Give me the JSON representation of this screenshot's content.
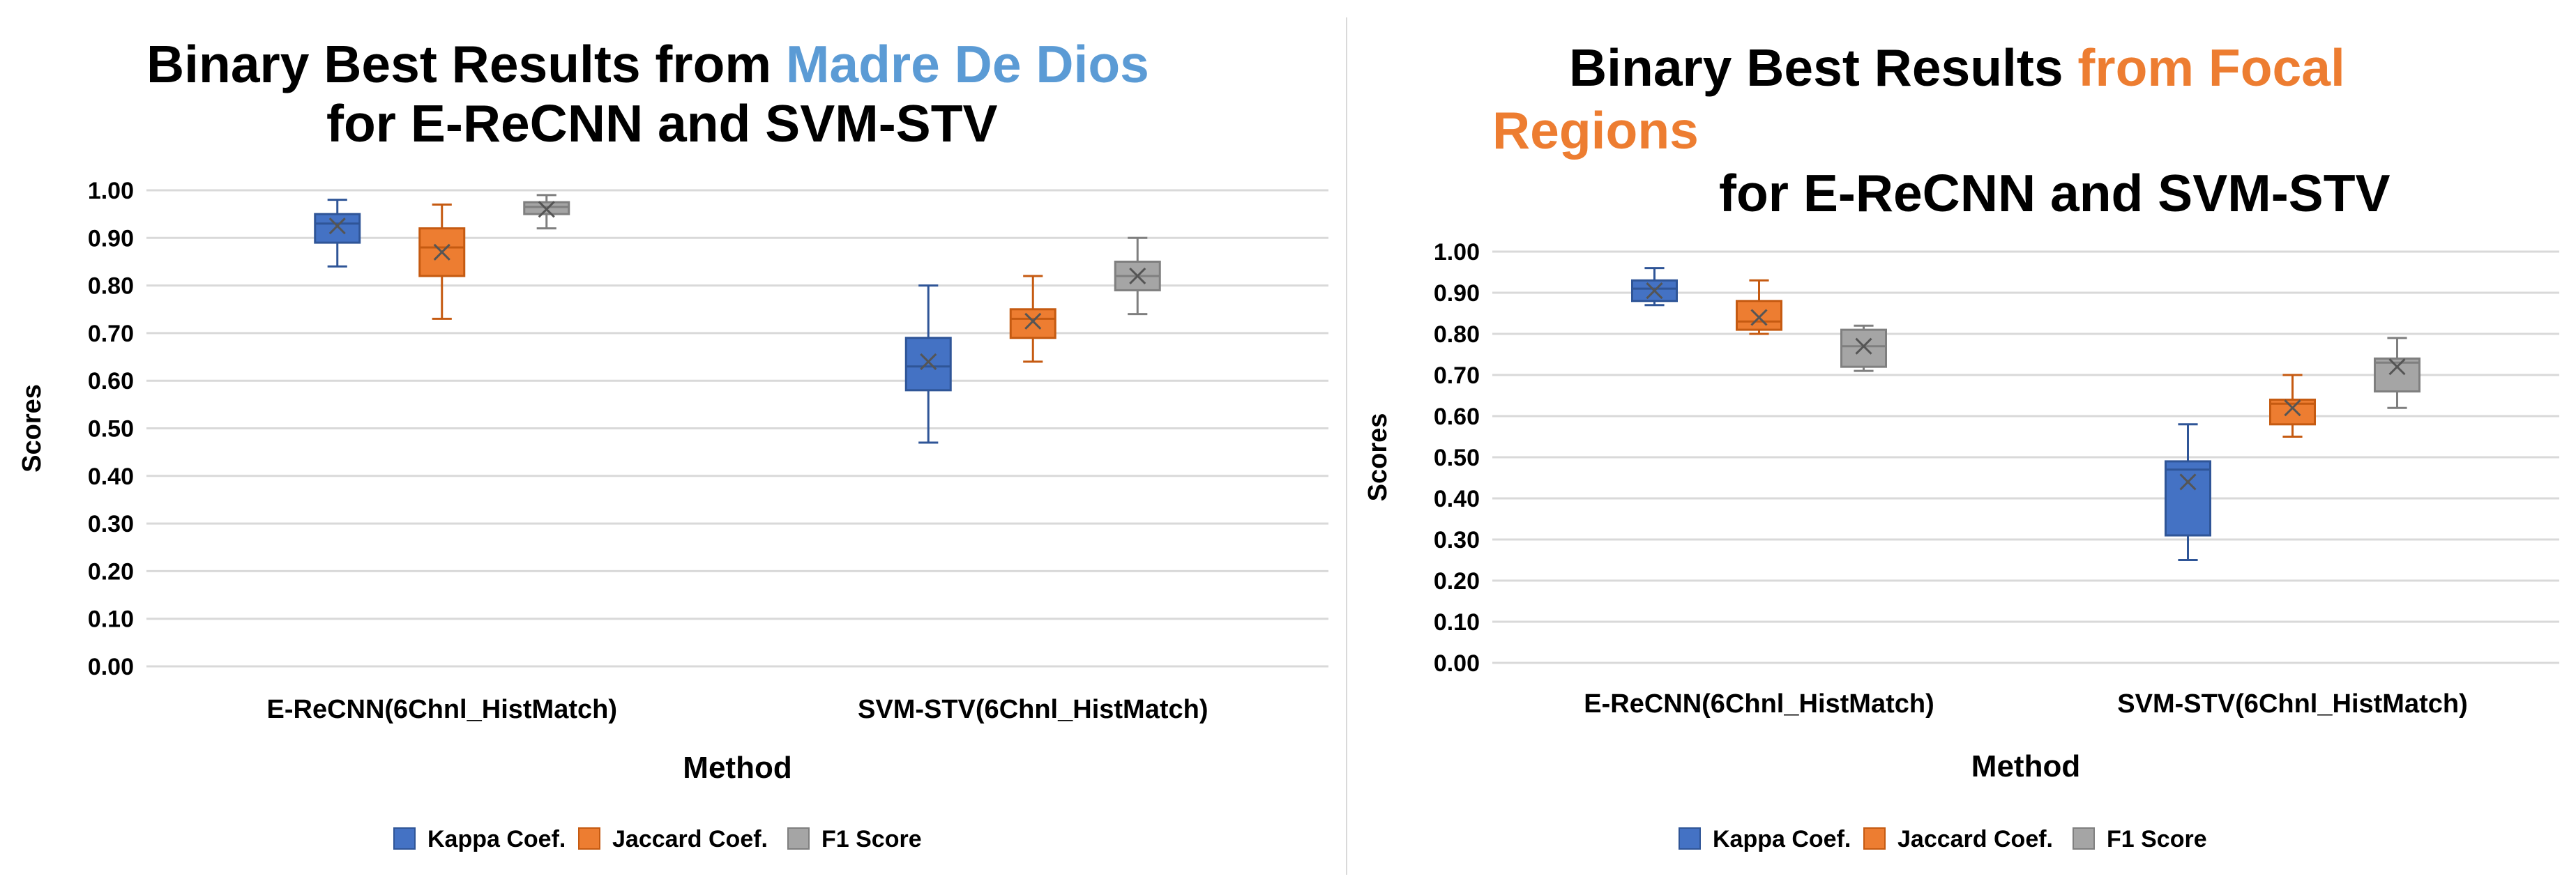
{
  "colors": {
    "kappa": "#4472C4",
    "jaccard": "#ED7D31",
    "f1": "#A5A5A5",
    "grid": "#d9d9d9"
  },
  "left": {
    "title_line1_a": "Binary Best Results from ",
    "title_line1_b": "Madre De Dios",
    "title_line2": "for E-ReCNN and SVM-STV",
    "title_accent": "#5B9BD5"
  },
  "right": {
    "title_line1_a": "Binary Best Results ",
    "title_line1_b": "from Focal",
    "title_line2": "Regions",
    "title_line3": "for E-ReCNN and SVM-STV",
    "title_accent": "#ED7D31"
  },
  "chart_data": [
    {
      "type": "box",
      "title": "Binary Best Results from Madre De Dios for E-ReCNN and SVM-STV",
      "xlabel": "Method",
      "ylabel": "Scores",
      "ylim": [
        0,
        1
      ],
      "yticks": [
        "0.00",
        "0.10",
        "0.20",
        "0.30",
        "0.40",
        "0.50",
        "0.60",
        "0.70",
        "0.80",
        "0.90",
        "1.00"
      ],
      "categories": [
        "E-ReCNN(6Chnl_HistMatch)",
        "SVM-STV(6Chnl_HistMatch)"
      ],
      "grid": true,
      "legend": "bottom",
      "series": [
        {
          "name": "Kappa Coef.",
          "boxes": [
            {
              "min": 0.84,
              "q1": 0.89,
              "median": 0.93,
              "q3": 0.95,
              "max": 0.98,
              "mean": 0.925
            },
            {
              "min": 0.47,
              "q1": 0.58,
              "median": 0.63,
              "q3": 0.69,
              "max": 0.8,
              "mean": 0.64
            }
          ]
        },
        {
          "name": "Jaccard Coef.",
          "boxes": [
            {
              "min": 0.73,
              "q1": 0.82,
              "median": 0.88,
              "q3": 0.92,
              "max": 0.97,
              "mean": 0.87
            },
            {
              "min": 0.64,
              "q1": 0.69,
              "median": 0.73,
              "q3": 0.75,
              "max": 0.82,
              "mean": 0.725
            }
          ]
        },
        {
          "name": "F1 Score",
          "boxes": [
            {
              "min": 0.92,
              "q1": 0.95,
              "median": 0.965,
              "q3": 0.975,
              "max": 0.99,
              "mean": 0.96
            },
            {
              "min": 0.74,
              "q1": 0.79,
              "median": 0.82,
              "q3": 0.85,
              "max": 0.9,
              "mean": 0.82
            }
          ]
        }
      ]
    },
    {
      "type": "box",
      "title": "Binary Best Results from Focal Regions for E-ReCNN and SVM-STV",
      "xlabel": "Method",
      "ylabel": "Scores",
      "ylim": [
        0,
        1
      ],
      "yticks": [
        "0.00",
        "0.10",
        "0.20",
        "0.30",
        "0.40",
        "0.50",
        "0.60",
        "0.70",
        "0.80",
        "0.90",
        "1.00"
      ],
      "categories": [
        "E-ReCNN(6Chnl_HistMatch)",
        "SVM-STV(6Chnl_HistMatch)"
      ],
      "grid": true,
      "legend": "bottom",
      "series": [
        {
          "name": "Kappa Coef.",
          "boxes": [
            {
              "min": 0.87,
              "q1": 0.88,
              "median": 0.91,
              "q3": 0.93,
              "max": 0.96,
              "mean": 0.905
            },
            {
              "min": 0.25,
              "q1": 0.31,
              "median": 0.47,
              "q3": 0.49,
              "max": 0.58,
              "mean": 0.44
            }
          ]
        },
        {
          "name": "Jaccard Coef.",
          "boxes": [
            {
              "min": 0.8,
              "q1": 0.81,
              "median": 0.83,
              "q3": 0.88,
              "max": 0.93,
              "mean": 0.84
            },
            {
              "min": 0.55,
              "q1": 0.58,
              "median": 0.63,
              "q3": 0.64,
              "max": 0.7,
              "mean": 0.62
            }
          ]
        },
        {
          "name": "F1 Score",
          "boxes": [
            {
              "min": 0.71,
              "q1": 0.72,
              "median": 0.77,
              "q3": 0.81,
              "max": 0.82,
              "mean": 0.77
            },
            {
              "min": 0.62,
              "q1": 0.66,
              "median": 0.73,
              "q3": 0.74,
              "max": 0.79,
              "mean": 0.72
            }
          ]
        }
      ]
    }
  ]
}
